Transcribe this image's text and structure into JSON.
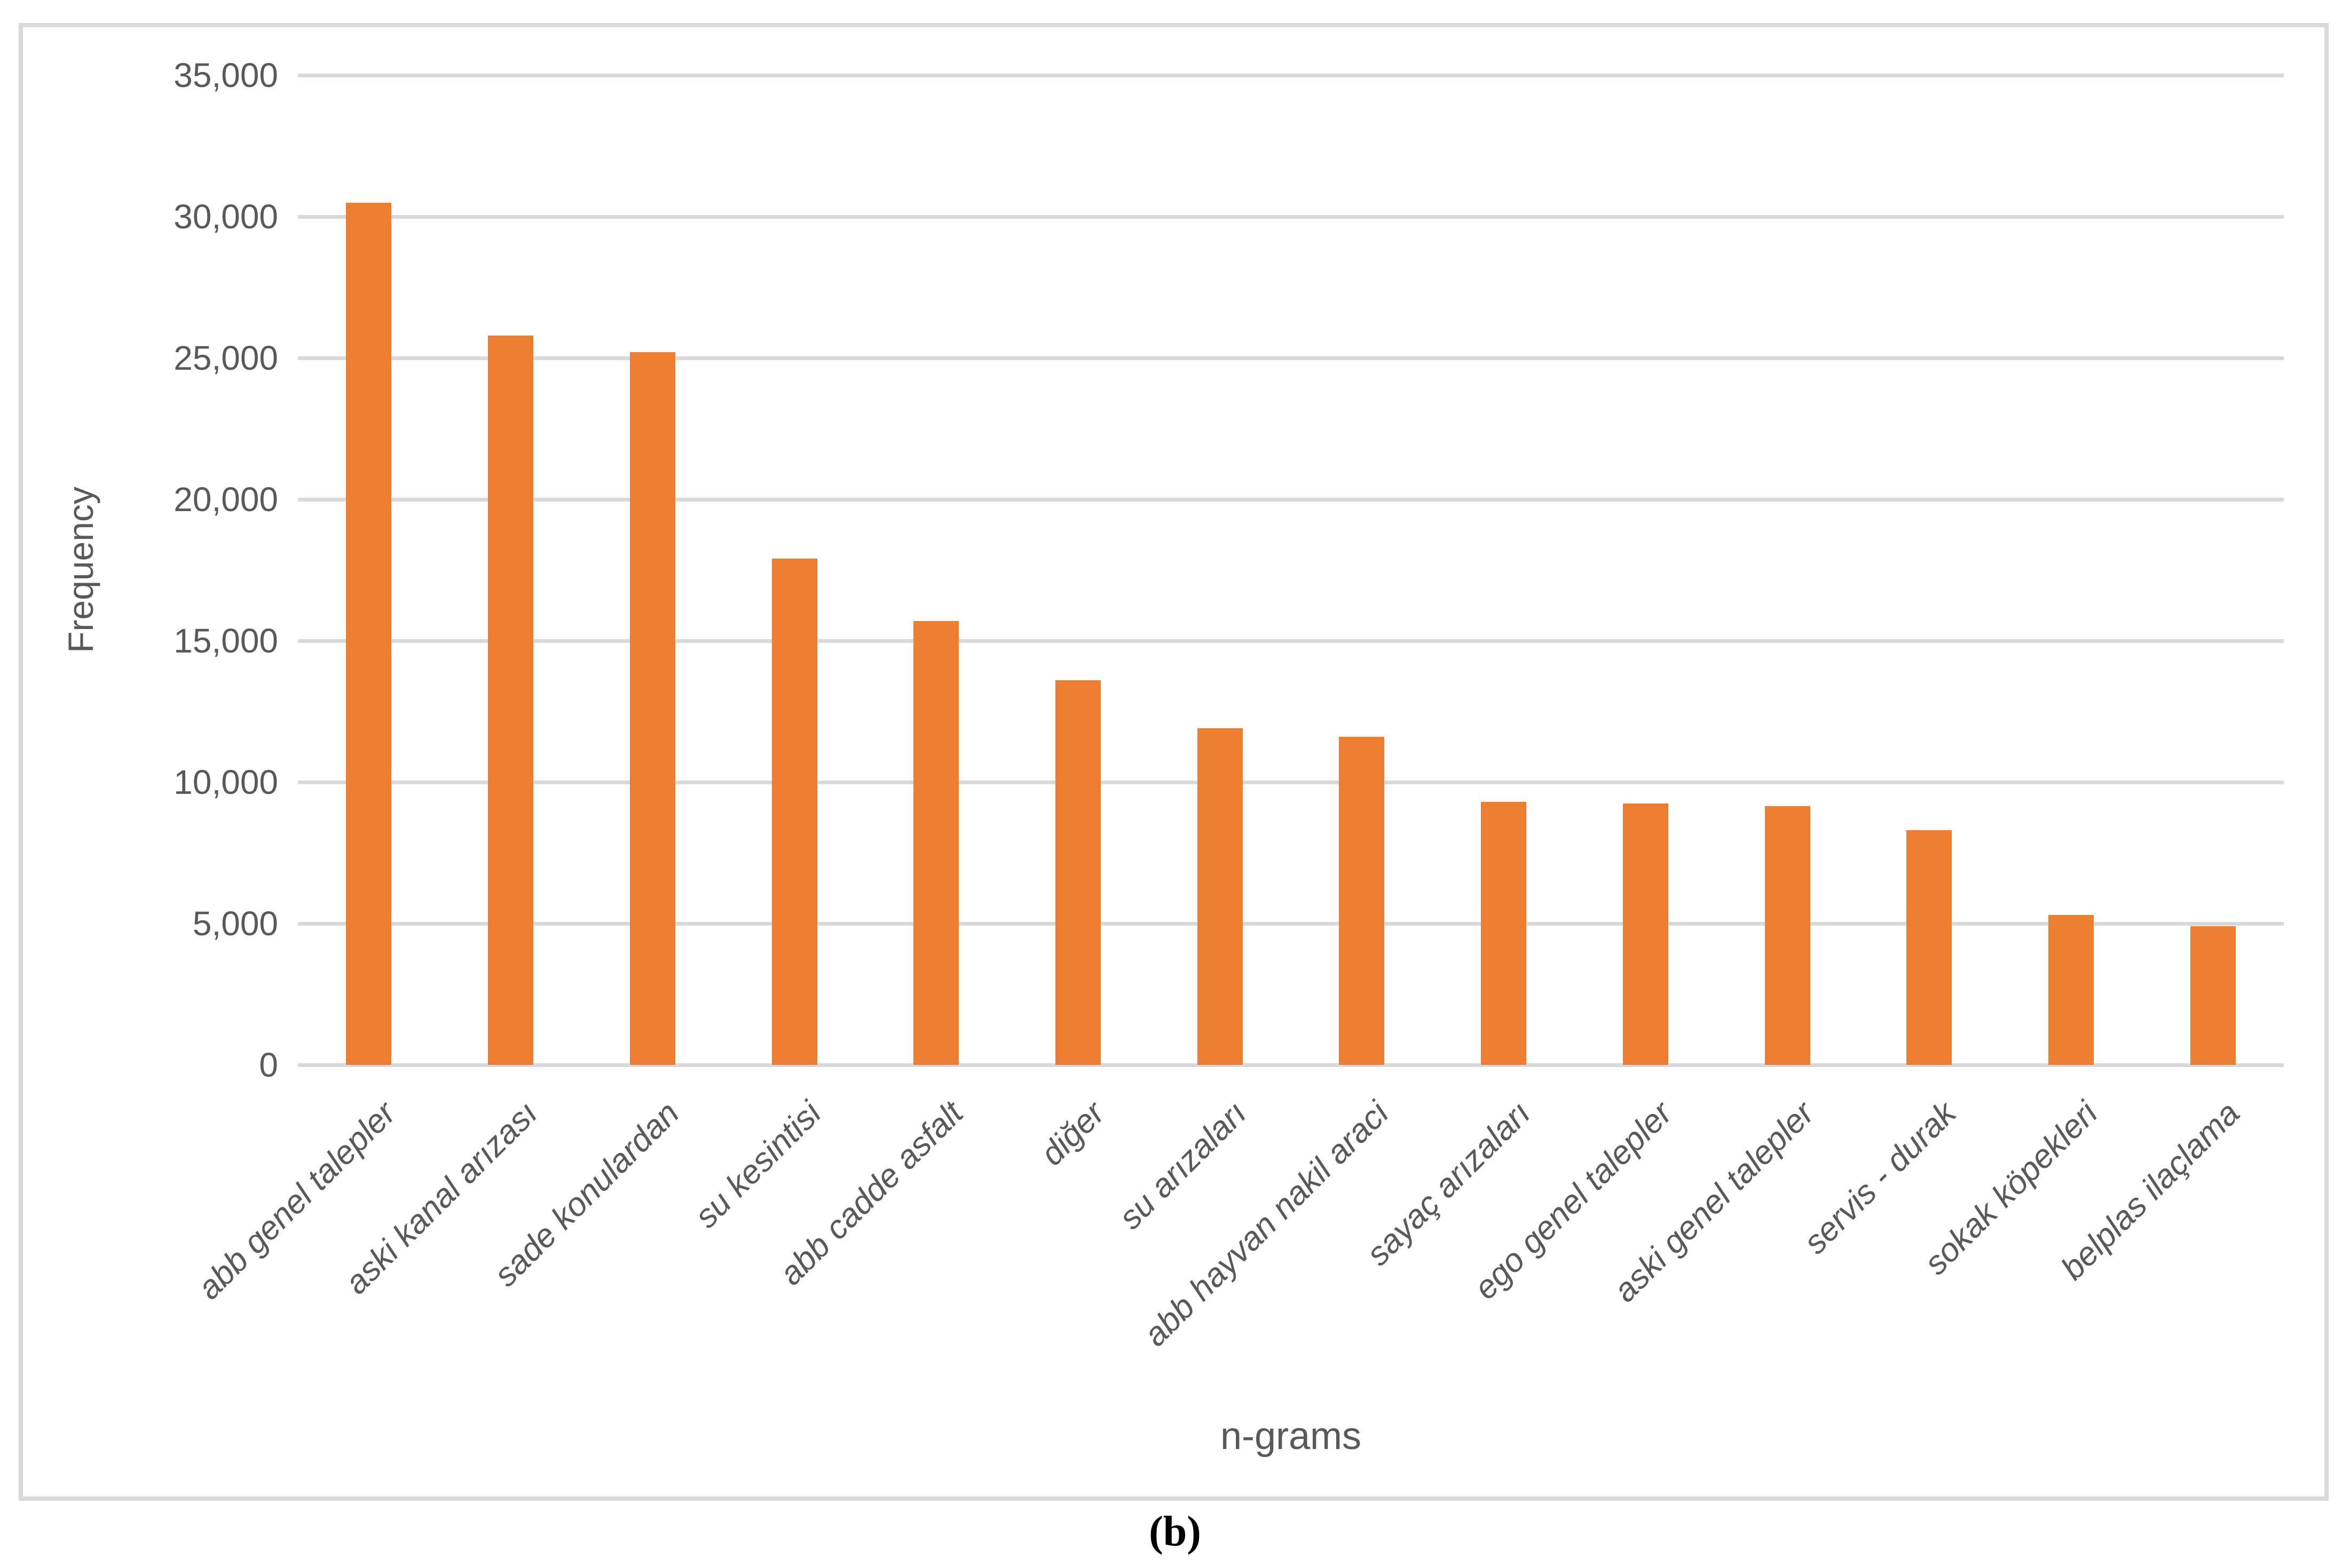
{
  "figure": {
    "caption": "(b)"
  },
  "chart_data": {
    "type": "bar",
    "title": "",
    "xlabel": "n-grams",
    "ylabel": "Frequency",
    "categories": [
      "abb genel talepler",
      "aski kanal arızası",
      "sade konulardan",
      "su kesintisi",
      "abb cadde asfalt",
      "diğer",
      "su arızaları",
      "abb hayvan nakil araci",
      "sayaç arızaları",
      "ego genel talepler",
      "aski genel talepler",
      "servis - durak",
      "sokak köpekleri",
      "belplas ilaçlama"
    ],
    "values": [
      30500,
      25800,
      25200,
      17900,
      15700,
      13600,
      11900,
      11600,
      9300,
      9250,
      9150,
      8300,
      5300,
      4900
    ],
    "ylim": [
      0,
      35000
    ],
    "ytick_step": 5000,
    "ytick_labels": [
      "0",
      "5,000",
      "10,000",
      "15,000",
      "20,000",
      "25,000",
      "30,000",
      "35,000"
    ],
    "grid": true,
    "legend_position": "none",
    "colors": {
      "bar": "#ED7D31",
      "gridline": "#D9D9D9",
      "axis_text": "#595959",
      "frame_border": "#D9D9D9",
      "caption_text": "#000000"
    }
  }
}
